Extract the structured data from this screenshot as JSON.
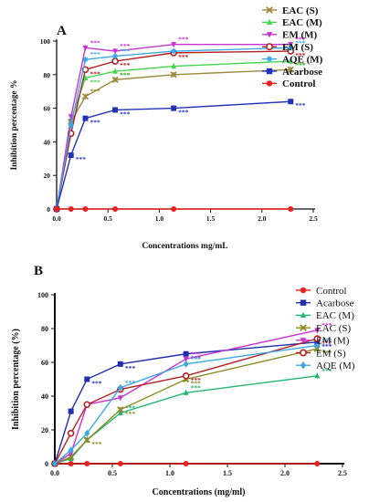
{
  "chart_data": [
    {
      "panel": "A",
      "type": "line",
      "xlabel": "Concentrations mg/mL",
      "ylabel": "Inhibition percentage %",
      "xlim": [
        0,
        2.5
      ],
      "ylim": [
        0,
        100
      ],
      "xticks": [
        "0.0",
        "0.5",
        "1.0",
        "1.5",
        "2.0",
        "2.5"
      ],
      "yticks": [
        "0",
        "20",
        "40",
        "60",
        "80",
        "100"
      ],
      "x": [
        0,
        0.14,
        0.28,
        0.57,
        1.14,
        2.28
      ],
      "legend_position": "top-right",
      "series": [
        {
          "name": "EAC (S)",
          "color": "#9c8a3a",
          "marker": "x",
          "values": [
            0,
            52,
            67,
            77,
            80,
            83
          ],
          "stars": [
            "",
            "",
            "***",
            "***",
            "",
            "***"
          ]
        },
        {
          "name": "EAC (M)",
          "color": "#44d64e",
          "marker": "triangle-up",
          "values": [
            0,
            53,
            78,
            82,
            85,
            88
          ],
          "stars": [
            "",
            "",
            "***",
            "***",
            "",
            "***"
          ]
        },
        {
          "name": "EM (M)",
          "color": "#c733d1",
          "marker": "triangle-down",
          "values": [
            0,
            55,
            96,
            94,
            98,
            98
          ],
          "stars": [
            "",
            "",
            "***",
            "***",
            "***",
            "***"
          ]
        },
        {
          "name": "EM (S)",
          "color": "#b22222",
          "marker": "circle-open",
          "values": [
            0,
            45,
            83,
            88,
            93,
            94
          ],
          "stars": [
            "",
            "",
            "***",
            "***",
            "***",
            "***"
          ]
        },
        {
          "name": "AQE (M)",
          "color": "#3ea8e6",
          "marker": "star",
          "values": [
            0,
            50,
            89,
            91,
            94,
            96
          ],
          "stars": [
            "",
            "",
            "***",
            "***",
            "",
            "***"
          ]
        },
        {
          "name": "Acarbose",
          "color": "#2233bb",
          "marker": "square",
          "values": [
            0,
            32,
            54,
            59,
            60,
            64
          ],
          "stars": [
            "",
            "***",
            "***",
            "***",
            "***",
            "***"
          ]
        },
        {
          "name": "Control",
          "color": "#e8201e",
          "marker": "circle",
          "values": [
            0,
            0,
            0,
            0,
            0,
            0
          ],
          "stars": [
            "",
            "",
            "",
            "",
            "",
            ""
          ]
        }
      ]
    },
    {
      "panel": "B",
      "type": "line",
      "xlabel": "Concentrations (mg/ml)",
      "ylabel": "Inhibition percentage (%)",
      "xlim": [
        0,
        2.5
      ],
      "ylim": [
        0,
        100
      ],
      "xticks": [
        "0.0",
        "0.5",
        "1.0",
        "1.5",
        "2.0",
        "2.5"
      ],
      "yticks": [
        "0",
        "20",
        "40",
        "60",
        "80",
        "100"
      ],
      "x": [
        0,
        0.14,
        0.28,
        0.57,
        1.14,
        2.28
      ],
      "legend_position": "top-right",
      "series": [
        {
          "name": "Control",
          "color": "#e8201e",
          "marker": "circle",
          "values": [
            0,
            0,
            0,
            0,
            0,
            0
          ],
          "stars": [
            "",
            "",
            "",
            "",
            "",
            ""
          ]
        },
        {
          "name": "Acarbose",
          "color": "#1f2fb0",
          "marker": "square",
          "values": [
            0,
            31,
            50,
            59,
            65,
            72
          ],
          "stars": [
            "",
            "",
            "***",
            "***",
            "***",
            "***"
          ]
        },
        {
          "name": "EAC (M)",
          "color": "#22b573",
          "marker": "triangle-up",
          "values": [
            0,
            3,
            14,
            30,
            42,
            52
          ],
          "stars": [
            "",
            "",
            "",
            "***",
            "***",
            "***"
          ]
        },
        {
          "name": "EAC (S)",
          "color": "#8a8a23",
          "marker": "x",
          "values": [
            0,
            4,
            14,
            32,
            50,
            68
          ],
          "stars": [
            "",
            "",
            "***",
            "***",
            "***",
            "***"
          ]
        },
        {
          "name": "EM (M)",
          "color": "#c733d1",
          "marker": "triangle-down",
          "values": [
            0,
            6,
            35,
            39,
            62,
            79
          ],
          "stars": [
            "",
            "",
            "",
            "",
            "***",
            "***"
          ]
        },
        {
          "name": "EM (S)",
          "color": "#b22222",
          "marker": "circle-open",
          "values": [
            0,
            18,
            35,
            44,
            52,
            74
          ],
          "stars": [
            "",
            "",
            "",
            "",
            "***",
            "***"
          ]
        },
        {
          "name": "AQE (M)",
          "color": "#3ea8e6",
          "marker": "diamond",
          "values": [
            0,
            8,
            18,
            45,
            59,
            70
          ],
          "stars": [
            "",
            "",
            "",
            "***",
            "***",
            "***"
          ]
        }
      ]
    }
  ]
}
